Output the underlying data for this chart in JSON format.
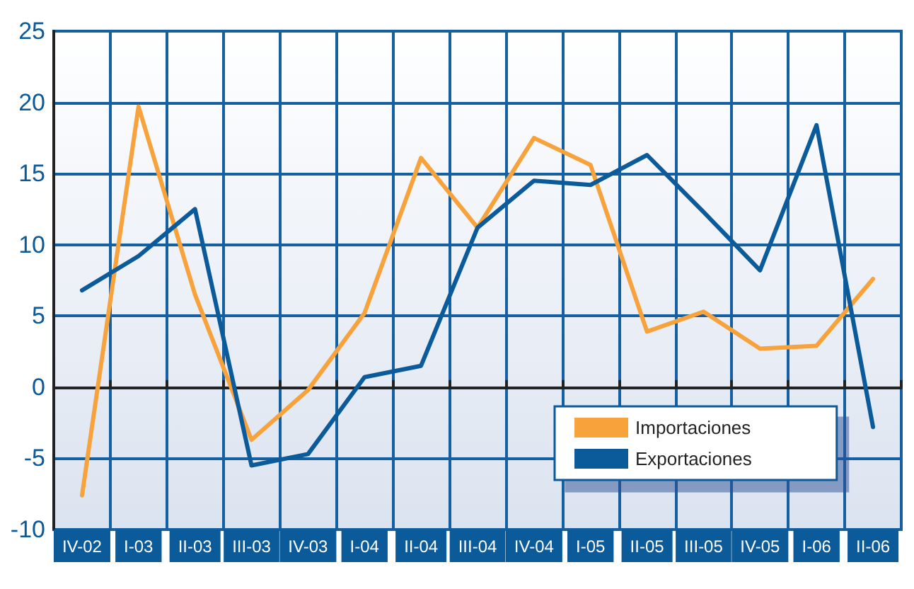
{
  "chart_data": {
    "type": "line",
    "categories": [
      "IV-02",
      "I-03",
      "II-03",
      "III-03",
      "IV-03",
      "I-04",
      "II-04",
      "III-04",
      "IV-04",
      "I-05",
      "II-05",
      "III-05",
      "IV-05",
      "I-06",
      "II-06"
    ],
    "series": [
      {
        "name": "Importaciones",
        "color": "#f8a23c",
        "values": [
          -7.6,
          19.7,
          6.5,
          -3.7,
          -0.2,
          5.2,
          16.1,
          11.2,
          17.5,
          15.6,
          3.9,
          5.3,
          2.7,
          2.9,
          7.6
        ]
      },
      {
        "name": "Exportaciones",
        "color": "#0b5a9a",
        "values": [
          6.8,
          9.2,
          12.5,
          -5.5,
          -4.7,
          0.7,
          1.5,
          11.2,
          14.5,
          14.2,
          16.3,
          12.3,
          8.2,
          18.4,
          -2.8
        ]
      }
    ],
    "ylim": [
      -10,
      25
    ],
    "yticks": [
      -10,
      -5,
      0,
      5,
      10,
      15,
      20,
      25
    ],
    "grid": true,
    "legend": "bottom right",
    "marker": "none",
    "line_style": "solid"
  }
}
